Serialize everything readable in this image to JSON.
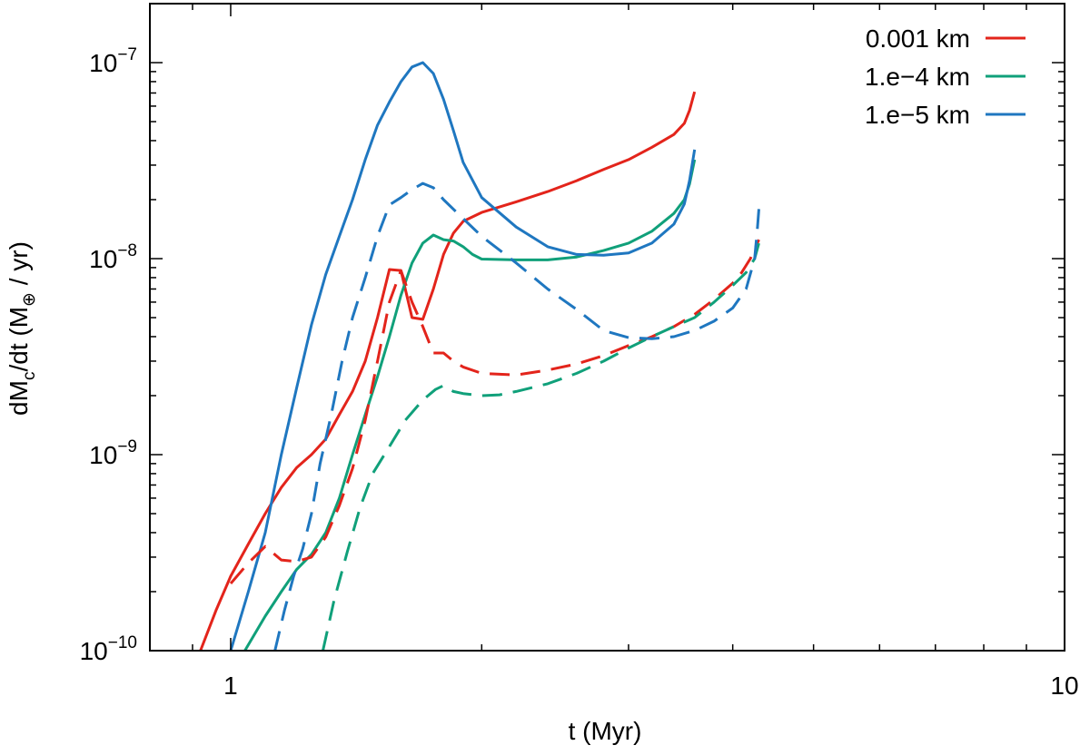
{
  "chart_data": {
    "type": "line",
    "title": "",
    "xlabel": "t (Myr)",
    "ylabel_parts": {
      "pre": "dM",
      "sub1": "c",
      "mid": "/dt (M",
      "sub2": "⊕",
      "post": " / yr)"
    },
    "xscale": "log",
    "yscale": "log",
    "xlim": [
      0.8,
      10
    ],
    "ylim": [
      1e-10,
      2e-07
    ],
    "grid": false,
    "legend_position": "top-right",
    "x_tick_labels": [
      {
        "value": 1,
        "label": "1"
      },
      {
        "value": 10,
        "label": "10"
      }
    ],
    "y_tick_labels": [
      {
        "value": 1e-10,
        "base": "10",
        "exp": "−10"
      },
      {
        "value": 1e-09,
        "base": "10",
        "exp": "−9"
      },
      {
        "value": 1e-08,
        "base": "10",
        "exp": "−8"
      },
      {
        "value": 1e-07,
        "base": "10",
        "exp": "−7"
      }
    ],
    "series": [
      {
        "name": "0.001 km",
        "color": "#e3241b",
        "style": "solid",
        "points": [
          [
            0.92,
            1e-10
          ],
          [
            0.96,
            1.6e-10
          ],
          [
            1.0,
            2.4e-10
          ],
          [
            1.05,
            3.5e-10
          ],
          [
            1.1,
            5e-10
          ],
          [
            1.15,
            6.8e-10
          ],
          [
            1.2,
            8.6e-10
          ],
          [
            1.25,
            1e-09
          ],
          [
            1.3,
            1.2e-09
          ],
          [
            1.35,
            1.6e-09
          ],
          [
            1.4,
            2.1e-09
          ],
          [
            1.45,
            3e-09
          ],
          [
            1.5,
            5e-09
          ],
          [
            1.55,
            8.8e-09
          ],
          [
            1.6,
            8.7e-09
          ],
          [
            1.65,
            5e-09
          ],
          [
            1.7,
            4.9e-09
          ],
          [
            1.75,
            7e-09
          ],
          [
            1.8,
            1.05e-08
          ],
          [
            1.85,
            1.35e-08
          ],
          [
            1.9,
            1.55e-08
          ],
          [
            2.0,
            1.72e-08
          ],
          [
            2.2,
            1.95e-08
          ],
          [
            2.4,
            2.2e-08
          ],
          [
            2.6,
            2.5e-08
          ],
          [
            2.8,
            2.85e-08
          ],
          [
            3.0,
            3.2e-08
          ],
          [
            3.2,
            3.7e-08
          ],
          [
            3.4,
            4.3e-08
          ],
          [
            3.5,
            4.9e-08
          ],
          [
            3.55,
            5.7e-08
          ],
          [
            3.6,
            7.1e-08
          ]
        ]
      },
      {
        "name": "1.e−4 km",
        "color": "#10a07a",
        "style": "solid",
        "points": [
          [
            1.04,
            1e-10
          ],
          [
            1.1,
            1.5e-10
          ],
          [
            1.15,
            2e-10
          ],
          [
            1.2,
            2.6e-10
          ],
          [
            1.25,
            3.1e-10
          ],
          [
            1.3,
            4e-10
          ],
          [
            1.35,
            6e-10
          ],
          [
            1.4,
            1e-09
          ],
          [
            1.45,
            1.6e-09
          ],
          [
            1.5,
            2.5e-09
          ],
          [
            1.55,
            4e-09
          ],
          [
            1.6,
            6.5e-09
          ],
          [
            1.65,
            9.5e-09
          ],
          [
            1.7,
            1.2e-08
          ],
          [
            1.75,
            1.32e-08
          ],
          [
            1.8,
            1.25e-08
          ],
          [
            1.85,
            1.23e-08
          ],
          [
            1.9,
            1.15e-08
          ],
          [
            1.95,
            1.05e-08
          ],
          [
            2.0,
            9.95e-09
          ],
          [
            2.2,
            9.85e-09
          ],
          [
            2.4,
            9.85e-09
          ],
          [
            2.6,
            1.02e-08
          ],
          [
            2.8,
            1.1e-08
          ],
          [
            3.0,
            1.2e-08
          ],
          [
            3.2,
            1.38e-08
          ],
          [
            3.4,
            1.7e-08
          ],
          [
            3.5,
            2e-08
          ],
          [
            3.55,
            2.4e-08
          ],
          [
            3.6,
            3.2e-08
          ]
        ]
      },
      {
        "name": "1.e−5 km",
        "color": "#1f77c0",
        "style": "solid",
        "points": [
          [
            1.0,
            1e-10
          ],
          [
            1.05,
            2e-10
          ],
          [
            1.1,
            4e-10
          ],
          [
            1.15,
            1e-09
          ],
          [
            1.2,
            2.2e-09
          ],
          [
            1.25,
            4.6e-09
          ],
          [
            1.3,
            8.3e-09
          ],
          [
            1.35,
            1.3e-08
          ],
          [
            1.4,
            2e-08
          ],
          [
            1.45,
            3.2e-08
          ],
          [
            1.5,
            4.8e-08
          ],
          [
            1.55,
            6.3e-08
          ],
          [
            1.6,
            8e-08
          ],
          [
            1.65,
            9.5e-08
          ],
          [
            1.7,
            1e-07
          ],
          [
            1.75,
            8.8e-08
          ],
          [
            1.8,
            6.5e-08
          ],
          [
            1.85,
            4.5e-08
          ],
          [
            1.9,
            3.1e-08
          ],
          [
            2.0,
            2.05e-08
          ],
          [
            2.2,
            1.45e-08
          ],
          [
            2.4,
            1.15e-08
          ],
          [
            2.6,
            1.05e-08
          ],
          [
            2.8,
            1.04e-08
          ],
          [
            3.0,
            1.07e-08
          ],
          [
            3.2,
            1.2e-08
          ],
          [
            3.4,
            1.5e-08
          ],
          [
            3.5,
            1.9e-08
          ],
          [
            3.55,
            2.5e-08
          ],
          [
            3.6,
            3.6e-08
          ]
        ]
      },
      {
        "name": "",
        "color": "#e3241b",
        "style": "dashed",
        "points": [
          [
            1.0,
            2.2e-10
          ],
          [
            1.05,
            2.8e-10
          ],
          [
            1.1,
            3.4e-10
          ],
          [
            1.15,
            2.9e-10
          ],
          [
            1.2,
            2.85e-10
          ],
          [
            1.25,
            3e-10
          ],
          [
            1.3,
            3.8e-10
          ],
          [
            1.35,
            5.5e-10
          ],
          [
            1.4,
            8.5e-10
          ],
          [
            1.45,
            1.5e-09
          ],
          [
            1.5,
            3e-09
          ],
          [
            1.55,
            6e-09
          ],
          [
            1.6,
            8.7e-09
          ],
          [
            1.65,
            6e-09
          ],
          [
            1.7,
            4.5e-09
          ],
          [
            1.75,
            3.3e-09
          ],
          [
            1.8,
            3.3e-09
          ],
          [
            1.85,
            3e-09
          ],
          [
            1.9,
            2.8e-09
          ],
          [
            2.0,
            2.6e-09
          ],
          [
            2.2,
            2.55e-09
          ],
          [
            2.4,
            2.7e-09
          ],
          [
            2.6,
            2.9e-09
          ],
          [
            2.8,
            3.2e-09
          ],
          [
            3.0,
            3.6e-09
          ],
          [
            3.2,
            4e-09
          ],
          [
            3.4,
            4.5e-09
          ],
          [
            3.6,
            5.2e-09
          ],
          [
            3.8,
            6.2e-09
          ],
          [
            4.0,
            7.5e-09
          ],
          [
            4.1,
            8.5e-09
          ],
          [
            4.2,
            1e-08
          ],
          [
            4.3,
            1.25e-08
          ]
        ]
      },
      {
        "name": "",
        "color": "#10a07a",
        "style": "dashed",
        "points": [
          [
            1.29,
            1e-10
          ],
          [
            1.33,
            1.8e-10
          ],
          [
            1.38,
            3.2e-10
          ],
          [
            1.43,
            5.4e-10
          ],
          [
            1.48,
            8e-10
          ],
          [
            1.55,
            1.1e-09
          ],
          [
            1.62,
            1.5e-09
          ],
          [
            1.7,
            1.9e-09
          ],
          [
            1.76,
            2.15e-09
          ],
          [
            1.8,
            2.25e-09
          ],
          [
            1.85,
            2.1e-09
          ],
          [
            1.9,
            2.05e-09
          ],
          [
            2.0,
            2e-09
          ],
          [
            2.1,
            2.02e-09
          ],
          [
            2.2,
            2.1e-09
          ],
          [
            2.4,
            2.3e-09
          ],
          [
            2.6,
            2.6e-09
          ],
          [
            2.8,
            3e-09
          ],
          [
            3.0,
            3.5e-09
          ],
          [
            3.2,
            4e-09
          ],
          [
            3.4,
            4.5e-09
          ],
          [
            3.6,
            5e-09
          ],
          [
            3.8,
            6e-09
          ],
          [
            4.0,
            7.3e-09
          ],
          [
            4.15,
            8.5e-09
          ],
          [
            4.25,
            1e-08
          ],
          [
            4.3,
            1.2e-08
          ]
        ]
      },
      {
        "name": "",
        "color": "#1f77c0",
        "style": "dashed",
        "points": [
          [
            1.13,
            1e-10
          ],
          [
            1.16,
            1.6e-10
          ],
          [
            1.19,
            2.4e-10
          ],
          [
            1.22,
            3.3e-10
          ],
          [
            1.25,
            5e-10
          ],
          [
            1.28,
            9e-10
          ],
          [
            1.32,
            1.6e-09
          ],
          [
            1.36,
            3e-09
          ],
          [
            1.4,
            5e-09
          ],
          [
            1.45,
            8e-09
          ],
          [
            1.5,
            1.3e-08
          ],
          [
            1.55,
            1.88e-08
          ],
          [
            1.6,
            2.05e-08
          ],
          [
            1.65,
            2.25e-08
          ],
          [
            1.7,
            2.42e-08
          ],
          [
            1.75,
            2.3e-08
          ],
          [
            1.8,
            2e-08
          ],
          [
            1.9,
            1.6e-08
          ],
          [
            2.0,
            1.3e-08
          ],
          [
            2.2,
            9.5e-09
          ],
          [
            2.4,
            7e-09
          ],
          [
            2.6,
            5.5e-09
          ],
          [
            2.8,
            4.3e-09
          ],
          [
            3.0,
            3.95e-09
          ],
          [
            3.2,
            3.9e-09
          ],
          [
            3.4,
            4e-09
          ],
          [
            3.6,
            4.3e-09
          ],
          [
            3.8,
            4.8e-09
          ],
          [
            4.0,
            5.6e-09
          ],
          [
            4.15,
            7e-09
          ],
          [
            4.25,
            1e-08
          ],
          [
            4.28,
            1.4e-08
          ],
          [
            4.3,
            1.8e-08
          ]
        ]
      }
    ]
  }
}
